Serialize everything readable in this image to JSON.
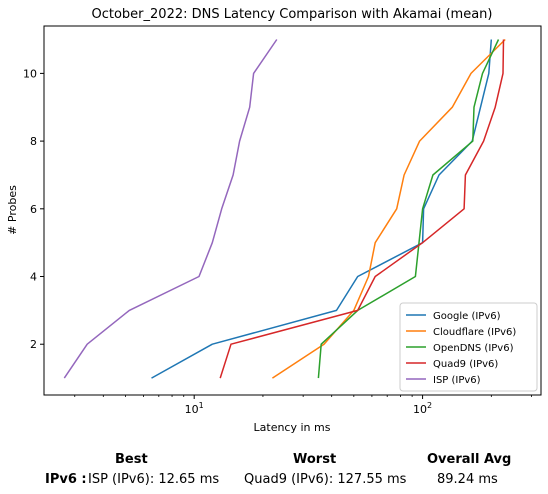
{
  "chart_data": {
    "type": "line",
    "title": "October_2022: DNS Latency Comparison with Akamai (mean)",
    "xlabel": "Latency in ms",
    "ylabel": "# Probes",
    "x_scale": "log",
    "xlim": [
      2.2,
      330
    ],
    "ylim": [
      0.5,
      11.4
    ],
    "x_ticks": [
      {
        "value": 10,
        "label": "10^1"
      },
      {
        "value": 100,
        "label": "10^2"
      }
    ],
    "y_ticks": [
      2,
      4,
      6,
      8,
      10
    ],
    "grid": false,
    "legend": "bottom-right",
    "series": [
      {
        "name": "Google (IPv6)",
        "color": "#1f77b4",
        "x": [
          6.5,
          12,
          42,
          52,
          100,
          101,
          118,
          165,
          195,
          200
        ],
        "y": [
          1,
          2,
          3,
          4,
          5,
          6,
          7,
          8,
          10,
          11
        ]
      },
      {
        "name": "Cloudflare (IPv6)",
        "color": "#ff7f0e",
        "x": [
          22,
          37,
          50,
          58,
          62,
          77,
          83,
          97,
          135,
          163,
          230
        ],
        "y": [
          1,
          2,
          3,
          4,
          5,
          6,
          7,
          8,
          9,
          10,
          11
        ]
      },
      {
        "name": "OpenDNS (IPv6)",
        "color": "#2ca02c",
        "x": [
          35,
          36,
          52,
          93,
          100,
          111,
          166,
          168,
          183,
          215
        ],
        "y": [
          1,
          2,
          3,
          4,
          6,
          7,
          8,
          9,
          10,
          11
        ]
      },
      {
        "name": "Quad9 (IPv6)",
        "color": "#d62728",
        "x": [
          13,
          14.5,
          52,
          62,
          100,
          152,
          154,
          185,
          208,
          225,
          226
        ],
        "y": [
          1,
          2,
          3,
          4,
          5,
          6,
          7,
          8,
          9,
          10,
          11
        ]
      },
      {
        "name": "ISP (IPv6)",
        "color": "#9467bd",
        "x": [
          2.7,
          3.4,
          5.2,
          10.5,
          12,
          13.2,
          14.8,
          15.8,
          17.5,
          18.2,
          23
        ],
        "y": [
          1,
          2,
          3,
          4,
          5,
          6,
          7,
          8,
          9,
          10,
          11
        ]
      }
    ]
  },
  "summary": {
    "best_header": "Best",
    "worst_header": "Worst",
    "avg_header": "Overall Avg",
    "row_label": "IPv6 :",
    "best": "ISP (IPv6): 12.65 ms",
    "worst": "Quad9 (IPv6): 127.55 ms",
    "avg": "89.24 ms"
  }
}
